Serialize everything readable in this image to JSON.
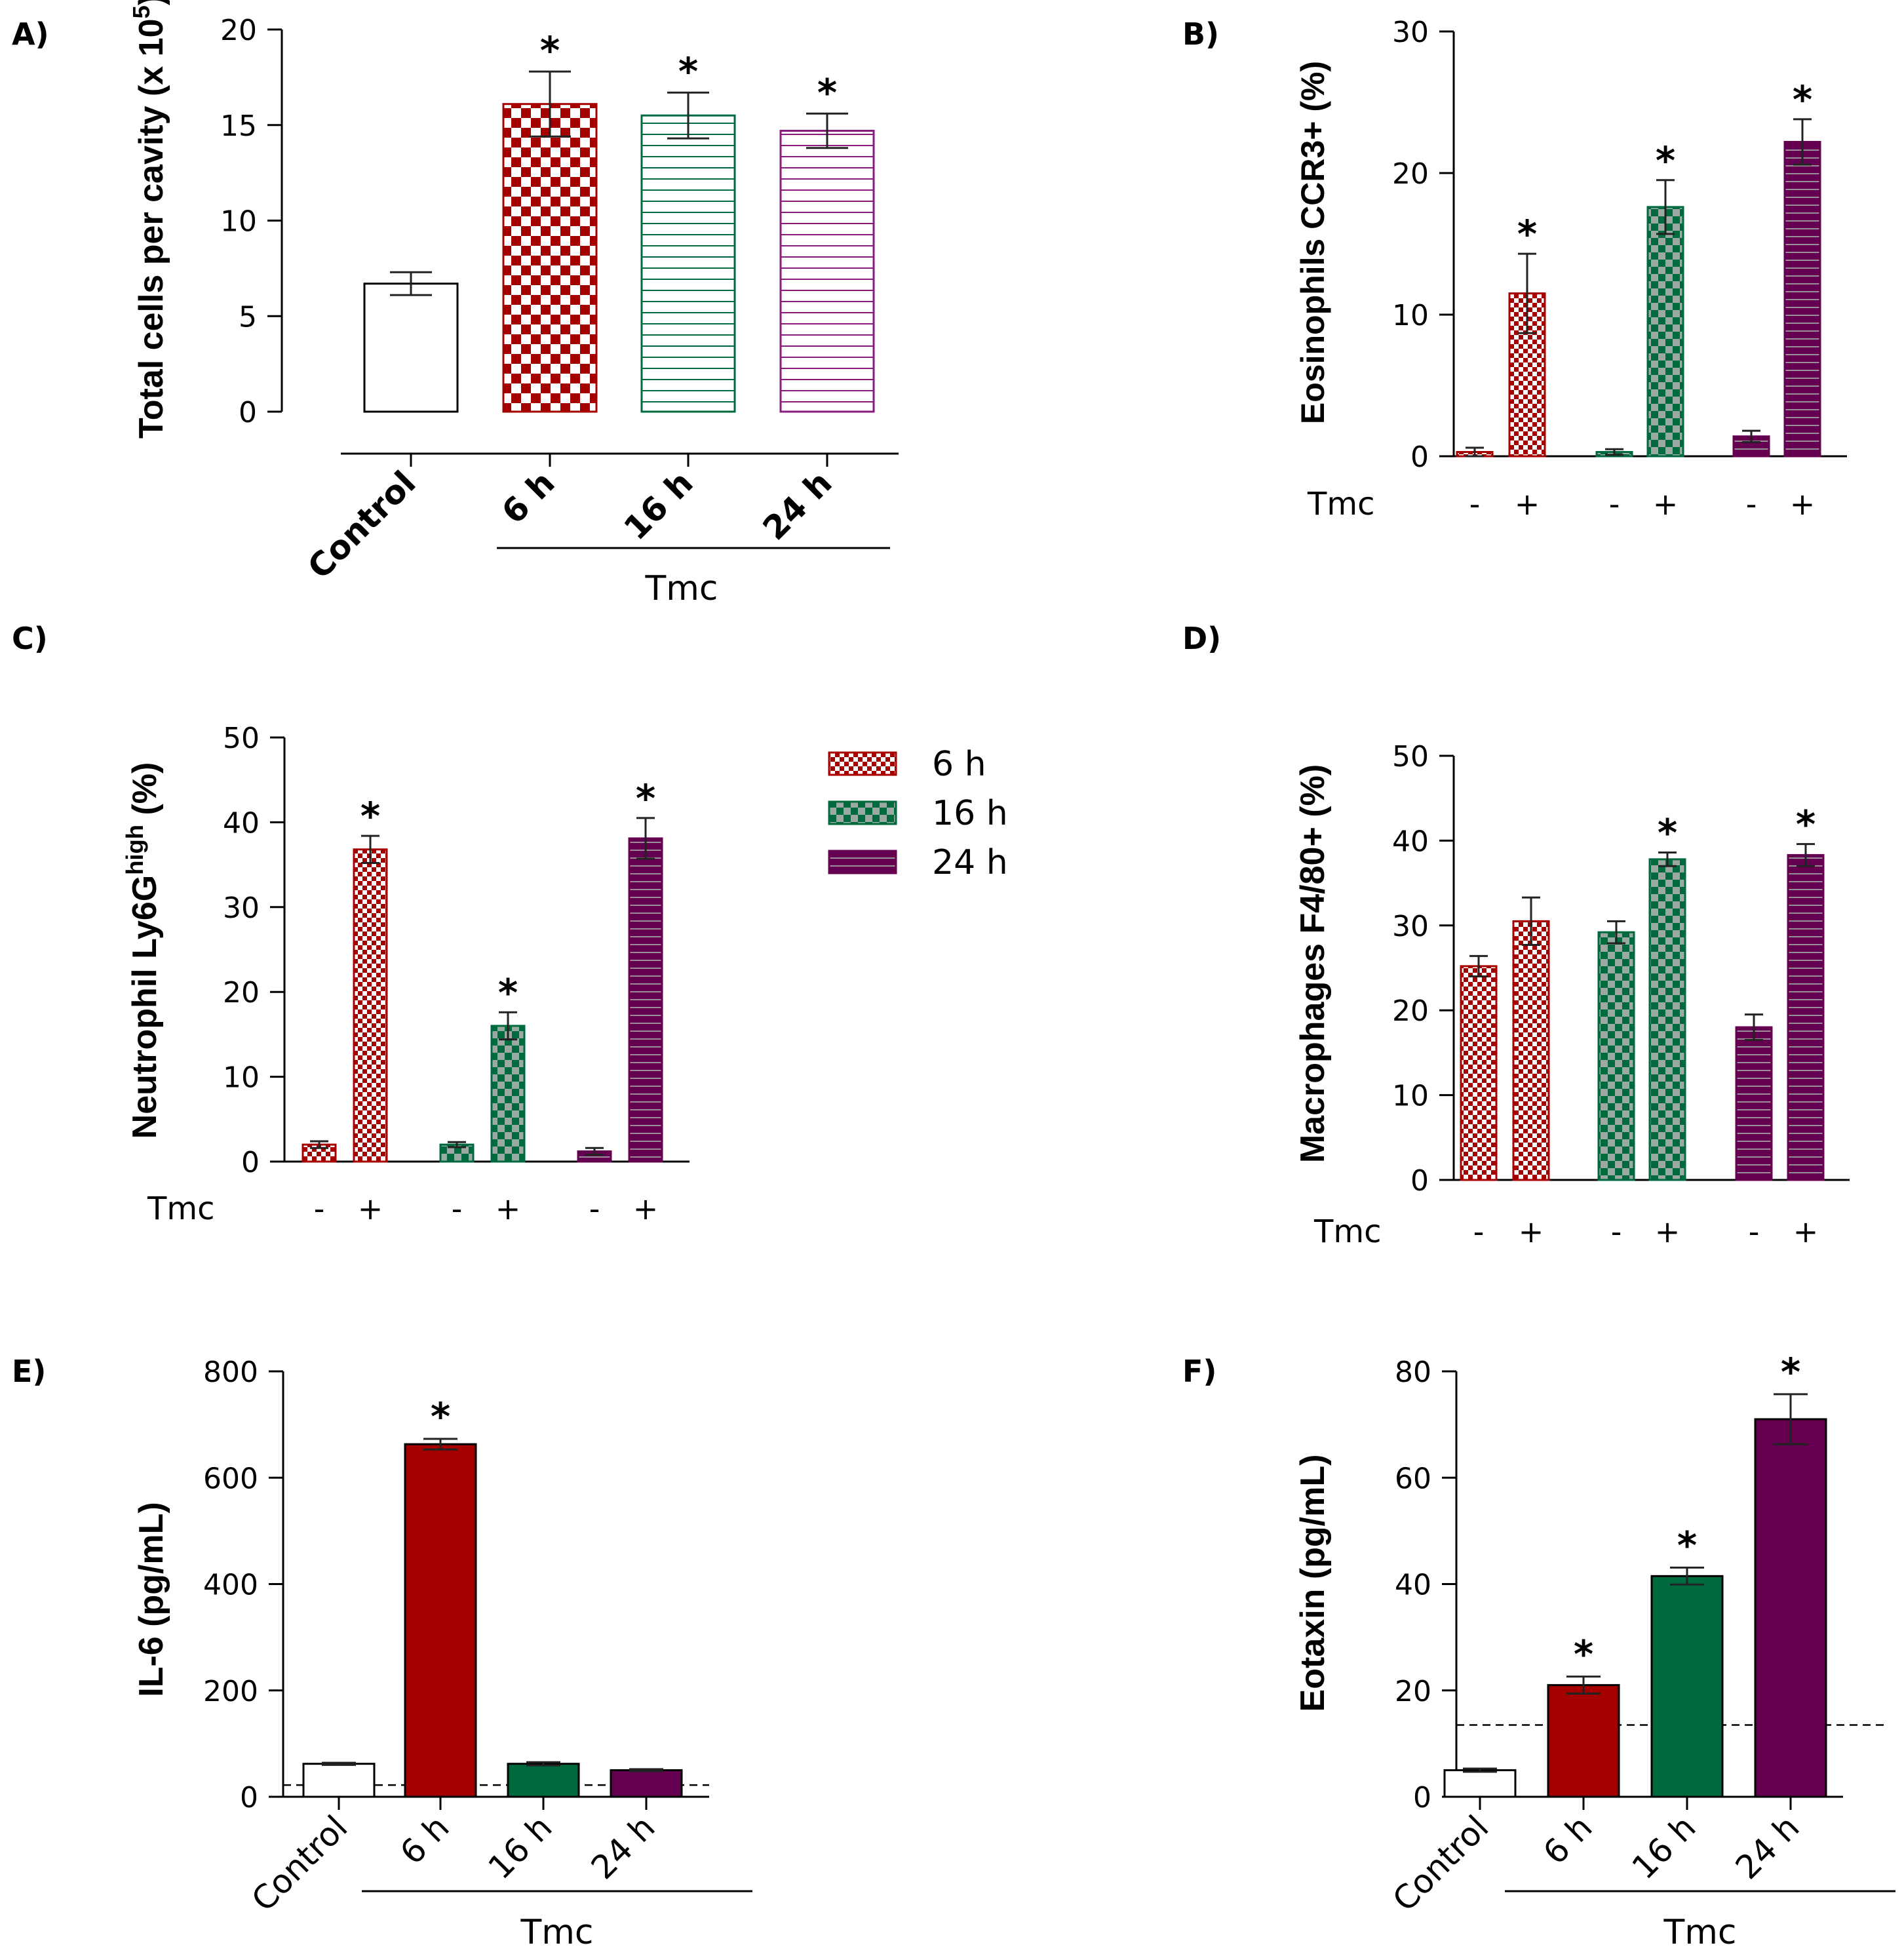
{
  "colors": {
    "control": "#ffffff",
    "h6": "#a50000",
    "h16": "#006a3f",
    "h24": "#650051",
    "axis": "#000000"
  },
  "legend": [
    {
      "label": "6 h",
      "color": "#a50000",
      "pattern": "checker-fine"
    },
    {
      "label": "16 h",
      "color": "#006a3f",
      "pattern": "checker-coarse"
    },
    {
      "label": "24 h",
      "color": "#650051",
      "pattern": "hstripes"
    }
  ],
  "chart_data": [
    {
      "panel": "A)",
      "type": "bar",
      "ylabel": "Total cells per cavity (x 10",
      "ylabel_sup": "5",
      "ylabel_end": ")",
      "ylim": [
        0,
        20
      ],
      "yticks": [
        0,
        5,
        10,
        15,
        20
      ],
      "categories": [
        "Control",
        "6 h",
        "16 h",
        "24 h"
      ],
      "values": [
        6.7,
        16.1,
        15.5,
        14.7
      ],
      "errors": [
        0.6,
        1.7,
        1.2,
        0.9
      ],
      "significant": [
        false,
        true,
        true,
        true
      ],
      "sig_mark": "*",
      "group_label": "Tmc",
      "fills": [
        "none",
        "checker",
        "hstripes",
        "hstripes"
      ],
      "series_colors": [
        "#000000",
        "#a50000",
        "#006a3f",
        "#8b1a7f"
      ]
    },
    {
      "panel": "B)",
      "type": "bar",
      "ylabel": "Eosinophils CCR3+ (%)",
      "ylim": [
        0,
        30
      ],
      "yticks": [
        0,
        10,
        20,
        30
      ],
      "groups": [
        "6 h",
        "16 h",
        "24 h"
      ],
      "xlabel": "Tmc",
      "tick_labels": [
        "-",
        "+",
        "-",
        "+",
        "-",
        "+"
      ],
      "series": [
        {
          "name": "-",
          "values": [
            0.3,
            0.3,
            1.4
          ],
          "errors": [
            0.3,
            0.2,
            0.4
          ]
        },
        {
          "name": "+",
          "values": [
            11.5,
            17.6,
            22.2
          ],
          "errors": [
            2.8,
            1.9,
            1.6
          ]
        }
      ],
      "significant": [
        false,
        true,
        false,
        true,
        false,
        true
      ],
      "sig_mark": "*"
    },
    {
      "panel": "C)",
      "type": "bar",
      "ylabel": "Neutrophil Ly6G",
      "ylabel_sup": "high",
      "ylabel_end": " (%)",
      "ylim": [
        0,
        50
      ],
      "yticks": [
        0,
        10,
        20,
        30,
        40,
        50
      ],
      "groups": [
        "6 h",
        "16 h",
        "24 h"
      ],
      "xlabel": "Tmc",
      "tick_labels": [
        "-",
        "+",
        "-",
        "+",
        "-",
        "+"
      ],
      "series": [
        {
          "name": "-",
          "values": [
            2.0,
            2.0,
            1.2
          ],
          "errors": [
            0.4,
            0.3,
            0.4
          ]
        },
        {
          "name": "+",
          "values": [
            36.8,
            16.0,
            38.1
          ],
          "errors": [
            1.6,
            1.6,
            2.4
          ]
        }
      ],
      "significant": [
        false,
        true,
        false,
        true,
        false,
        true
      ],
      "sig_mark": "*"
    },
    {
      "panel": "D)",
      "type": "bar",
      "ylabel": "Macrophages F4/80+ (%)",
      "ylim": [
        0,
        50
      ],
      "yticks": [
        0,
        10,
        20,
        30,
        40,
        50
      ],
      "groups": [
        "6 h",
        "16 h",
        "24 h"
      ],
      "xlabel": "Tmc",
      "tick_labels": [
        "-",
        "+",
        "-",
        "+",
        "-",
        "+"
      ],
      "series": [
        {
          "name": "-",
          "values": [
            25.2,
            29.2,
            18.0
          ],
          "errors": [
            1.2,
            1.3,
            1.5
          ]
        },
        {
          "name": "+",
          "values": [
            30.5,
            37.8,
            38.3
          ],
          "errors": [
            2.8,
            0.8,
            1.3
          ]
        }
      ],
      "significant": [
        false,
        false,
        false,
        true,
        false,
        true
      ],
      "sig_mark": "*"
    },
    {
      "panel": "E)",
      "type": "bar",
      "ylabel": "IL-6 (pg/mL)",
      "ylim": [
        0,
        800
      ],
      "yticks": [
        0,
        200,
        400,
        600,
        800
      ],
      "categories": [
        "Control",
        "6 h",
        "16 h",
        "24 h"
      ],
      "values": [
        62,
        663,
        62,
        50
      ],
      "errors": [
        2,
        10,
        3,
        2
      ],
      "significant": [
        false,
        true,
        false,
        false
      ],
      "sig_mark": "*",
      "group_label": "Tmc",
      "detection_limit": 22
    },
    {
      "panel": "F)",
      "type": "bar",
      "ylabel": "Eotaxin (pg/mL)",
      "ylim": [
        0,
        80
      ],
      "yticks": [
        0,
        20,
        40,
        60,
        80
      ],
      "categories": [
        "Control",
        "6 h",
        "16 h",
        "24 h"
      ],
      "values": [
        5.0,
        21.0,
        41.5,
        71.0
      ],
      "errors": [
        0.3,
        1.6,
        1.6,
        4.7
      ],
      "significant": [
        false,
        true,
        true,
        true
      ],
      "sig_mark": "*",
      "group_label": "Tmc",
      "detection_limit": 13.5
    }
  ]
}
